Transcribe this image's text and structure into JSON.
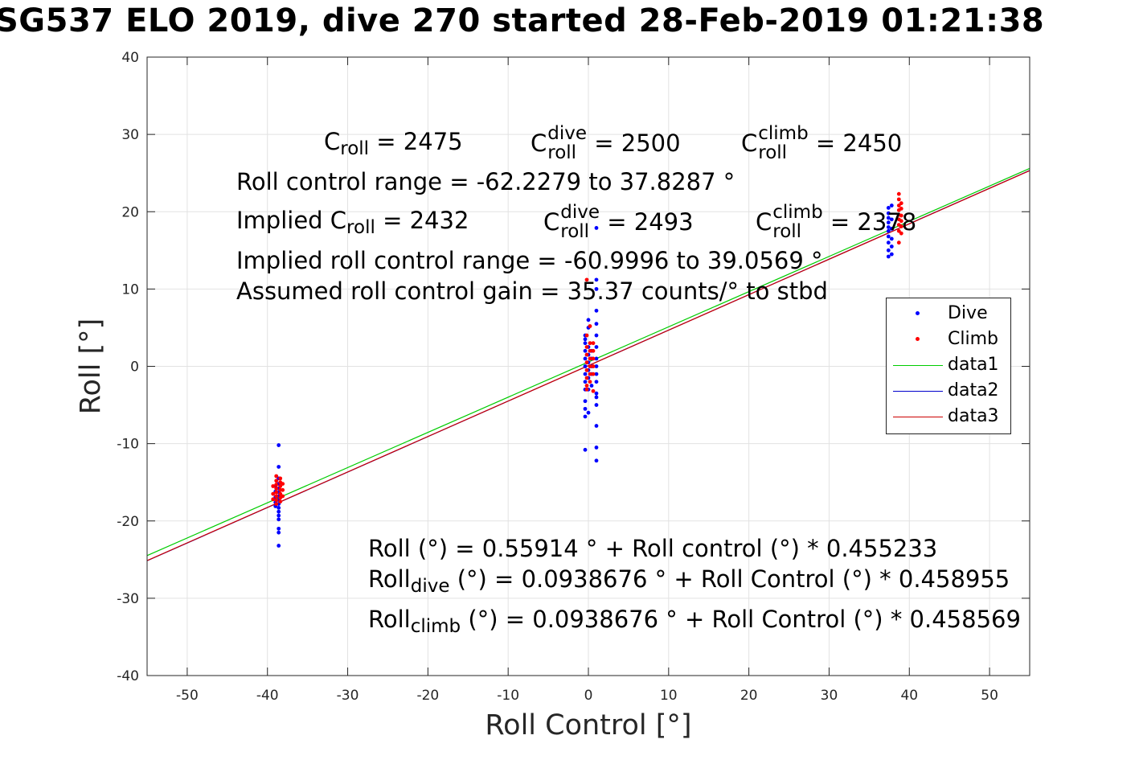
{
  "title": "SG537 ELO 2019, dive 270 started 28-Feb-2019 01:21:38",
  "colors": {
    "dive": "#0000ff",
    "climb": "#ff0000",
    "data1": "#00cc00",
    "data2": "#0000cc",
    "data3": "#cc0000",
    "grid": "#e2e2e2"
  },
  "annotations": {
    "c_roll_label": "C",
    "c_roll_sub": "roll",
    "c_roll_value": "= 2475",
    "c_dive_label": "C",
    "c_dive_sup": "dive",
    "c_dive_sub": "roll",
    "c_dive_value": "= 2500",
    "c_climb_label": "C",
    "c_climb_sup": "climb",
    "c_climb_sub": "roll",
    "c_climb_value": "= 2450",
    "roll_control_range": "Roll control range = -62.2279 to 37.8287 °",
    "implied_c_roll_label": "Implied C",
    "implied_c_roll_sub": "roll",
    "implied_c_roll_value": "= 2432",
    "implied_c_dive_label": "C",
    "implied_c_dive_sup": "dive",
    "implied_c_dive_sub": "roll",
    "implied_c_dive_value": "= 2493",
    "implied_c_climb_label": "C",
    "implied_c_climb_sup": "climb",
    "implied_c_climb_sub": "roll",
    "implied_c_climb_value": "= 2378",
    "implied_range": "Implied roll control range = -60.9996 to 39.0569 °",
    "assumed_gain": "Assumed roll control gain = 35.37 counts/° to stbd",
    "fit_all": "Roll (°) = 0.55914 ° + Roll control (°) * 0.455233",
    "fit_dive_label": "Roll",
    "fit_dive_sub": "dive",
    "fit_dive_rest": "(°) = 0.0938676 ° + Roll Control (°) * 0.458955",
    "fit_climb_label": "Roll",
    "fit_climb_sub": "climb",
    "fit_climb_rest": "(°) = 0.0938676 ° + Roll Control (°) * 0.458569"
  },
  "legend": [
    {
      "label": "Dive",
      "kind": "dot",
      "color": "#0000ff"
    },
    {
      "label": "Climb",
      "kind": "dot",
      "color": "#ff0000"
    },
    {
      "label": "data1",
      "kind": "line",
      "color": "#00cc00"
    },
    {
      "label": "data2",
      "kind": "line",
      "color": "#0000cc"
    },
    {
      "label": "data3",
      "kind": "line",
      "color": "#cc0000"
    }
  ],
  "chart_data": {
    "type": "scatter",
    "xlabel": "Roll Control [°]",
    "ylabel": "Roll [°]",
    "xlim": [
      -55,
      55
    ],
    "ylim": [
      -40,
      40
    ],
    "xticks": [
      -50,
      -40,
      -30,
      -20,
      -10,
      0,
      10,
      20,
      30,
      40,
      50
    ],
    "yticks": [
      -40,
      -30,
      -20,
      -10,
      0,
      10,
      20,
      30,
      40
    ],
    "grid": true,
    "legend_position": "right",
    "lines": [
      {
        "name": "data1",
        "color": "#00cc00",
        "intercept": 0.55914,
        "slope": 0.455233
      },
      {
        "name": "data2",
        "color": "#0000cc",
        "intercept": 0.0938676,
        "slope": 0.458955
      },
      {
        "name": "data3",
        "color": "#cc0000",
        "intercept": 0.0938676,
        "slope": 0.458569
      }
    ],
    "series": [
      {
        "name": "Dive",
        "color": "#0000ff",
        "points": [
          [
            -38.6,
            -10.2
          ],
          [
            -38.6,
            -13
          ],
          [
            -38.6,
            -14.5
          ],
          [
            -38.6,
            -15.2
          ],
          [
            -38.6,
            -15.8
          ],
          [
            -38.6,
            -16.3
          ],
          [
            -38.6,
            -16.8
          ],
          [
            -38.6,
            -17.3
          ],
          [
            -38.6,
            -17.8
          ],
          [
            -38.6,
            -18.3
          ],
          [
            -38.6,
            -18.8
          ],
          [
            -38.6,
            -19.3
          ],
          [
            -38.6,
            -19.8
          ],
          [
            -38.6,
            -21
          ],
          [
            -38.6,
            -21.5
          ],
          [
            -38.6,
            -23.2
          ],
          [
            -39,
            -15.5
          ],
          [
            -39,
            -16.2
          ],
          [
            -39,
            -16.9
          ],
          [
            -39,
            -17.6
          ],
          [
            -39,
            -18.1
          ],
          [
            -0.4,
            -10.8
          ],
          [
            -0.4,
            -6.5
          ],
          [
            -0.4,
            -5.5
          ],
          [
            -0.4,
            -4.5
          ],
          [
            -0.4,
            -3
          ],
          [
            -0.4,
            -2
          ],
          [
            -0.4,
            -1
          ],
          [
            -0.4,
            0
          ],
          [
            -0.4,
            1
          ],
          [
            -0.4,
            2
          ],
          [
            -0.4,
            3
          ],
          [
            -0.4,
            3.5
          ],
          [
            -0.4,
            4
          ],
          [
            0,
            -6
          ],
          [
            0,
            -3
          ],
          [
            0,
            -1.5
          ],
          [
            0,
            -0.5
          ],
          [
            0,
            0.5
          ],
          [
            0,
            1.5
          ],
          [
            0,
            2.5
          ],
          [
            0,
            5
          ],
          [
            0,
            6
          ],
          [
            0.4,
            -2.5
          ],
          [
            0.4,
            -1
          ],
          [
            0.4,
            0
          ],
          [
            0.4,
            1
          ],
          [
            0.4,
            2
          ],
          [
            1,
            -12.2
          ],
          [
            1,
            -10.5
          ],
          [
            1,
            -7.7
          ],
          [
            1,
            -5
          ],
          [
            1,
            -4
          ],
          [
            1,
            -3.5
          ],
          [
            1,
            -2
          ],
          [
            1,
            -1
          ],
          [
            1,
            0
          ],
          [
            1,
            1
          ],
          [
            1,
            2.5
          ],
          [
            1,
            4
          ],
          [
            1,
            5.5
          ],
          [
            1,
            7.2
          ],
          [
            1,
            10
          ],
          [
            1,
            11.2
          ],
          [
            1,
            17.9
          ],
          [
            37.4,
            14.2
          ],
          [
            37.4,
            15
          ],
          [
            37.4,
            16
          ],
          [
            37.4,
            16.8
          ],
          [
            37.4,
            17.5
          ],
          [
            37.4,
            18
          ],
          [
            37.4,
            18.6
          ],
          [
            37.4,
            19.2
          ],
          [
            37.4,
            19.8
          ],
          [
            37.4,
            20.5
          ],
          [
            37.8,
            14.5
          ],
          [
            37.8,
            15.5
          ],
          [
            37.8,
            16.5
          ],
          [
            37.8,
            17.8
          ],
          [
            37.8,
            19
          ],
          [
            37.8,
            20.8
          ]
        ]
      },
      {
        "name": "Climb",
        "color": "#ff0000",
        "points": [
          [
            -38.9,
            -14.2
          ],
          [
            -38.9,
            -14.8
          ],
          [
            -38.9,
            -15.3
          ],
          [
            -38.9,
            -15.8
          ],
          [
            -38.9,
            -16.3
          ],
          [
            -38.9,
            -16.8
          ],
          [
            -38.9,
            -17.3
          ],
          [
            -38.9,
            -17.8
          ],
          [
            -38.4,
            -14.5
          ],
          [
            -38.4,
            -15
          ],
          [
            -38.4,
            -15.5
          ],
          [
            -38.4,
            -16
          ],
          [
            -38.4,
            -16.5
          ],
          [
            -38.4,
            -17
          ],
          [
            -38.4,
            -17.5
          ],
          [
            -38.1,
            -15.2
          ],
          [
            -38.1,
            -16
          ],
          [
            -38.1,
            -16.8
          ],
          [
            -39.3,
            -15.5
          ],
          [
            -39.3,
            -16.5
          ],
          [
            -39.3,
            -17.2
          ],
          [
            -0.2,
            11.2
          ],
          [
            -0.2,
            4
          ],
          [
            -0.2,
            2.5
          ],
          [
            -0.2,
            1.5
          ],
          [
            -0.2,
            0.5
          ],
          [
            -0.2,
            -0.5
          ],
          [
            -0.2,
            -1.5
          ],
          [
            -0.2,
            -2.5
          ],
          [
            -0.2,
            -3
          ],
          [
            0.2,
            5.2
          ],
          [
            0.2,
            3
          ],
          [
            0.2,
            2
          ],
          [
            0.2,
            1
          ],
          [
            0.2,
            0
          ],
          [
            0.2,
            -1
          ],
          [
            0.2,
            -2
          ],
          [
            0.6,
            3
          ],
          [
            0.6,
            2
          ],
          [
            0.6,
            1
          ],
          [
            0.6,
            0
          ],
          [
            0.6,
            -1
          ],
          [
            0.6,
            -3.2
          ],
          [
            38.7,
            16
          ],
          [
            38.7,
            17.5
          ],
          [
            38.7,
            18.3
          ],
          [
            38.7,
            19
          ],
          [
            38.7,
            19.6
          ],
          [
            38.7,
            20.2
          ],
          [
            38.7,
            20.8
          ],
          [
            38.7,
            21.6
          ],
          [
            38.7,
            22.3
          ],
          [
            39,
            17.2
          ],
          [
            39,
            18.1
          ],
          [
            39,
            18.8
          ],
          [
            39,
            19.5
          ],
          [
            39,
            20.4
          ],
          [
            39,
            21.1
          ]
        ]
      }
    ]
  }
}
